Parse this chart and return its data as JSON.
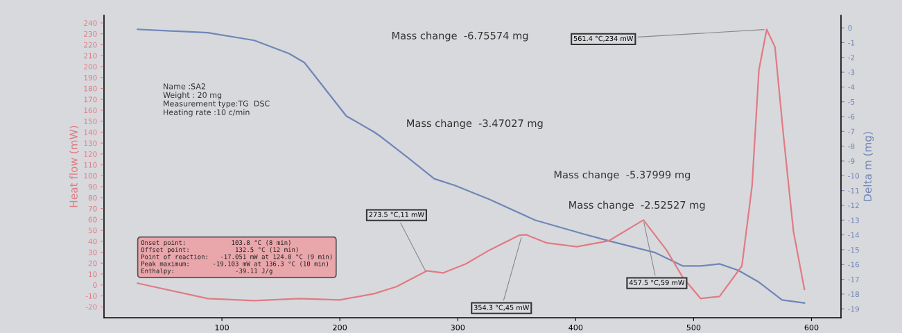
{
  "chart_data": {
    "type": "line",
    "ylabel": "Heat flow (mW)",
    "y2label": "Delta m (mg)",
    "xlim": [
      0,
      625
    ],
    "xticks": [
      100,
      200,
      300,
      400,
      500,
      600
    ],
    "ylim": [
      -30,
      247
    ],
    "yticks": [
      -20,
      -10,
      0,
      10,
      20,
      30,
      40,
      50,
      60,
      70,
      80,
      90,
      100,
      110,
      120,
      130,
      140,
      150,
      160,
      170,
      180,
      190,
      200,
      210,
      220,
      230,
      240
    ],
    "y2lim": [
      -19.6,
      0.85
    ],
    "y2ticks": [
      -19,
      -18,
      -17,
      -16,
      -15,
      -14,
      -13,
      -12,
      -11,
      -10,
      -9,
      -8,
      -7,
      -6,
      -5,
      -4,
      -3,
      -2,
      -1,
      0
    ],
    "grid": false,
    "legend": false,
    "series": [
      {
        "color": "#e07b84",
        "x": [
          28.5,
          88,
          127.5,
          166,
          200,
          229,
          248,
          274,
          287.5,
          307,
          327,
          352,
          358,
          375.5,
          401,
          428,
          457.5,
          477,
          491,
          506,
          522,
          541,
          549.6,
          555.4,
          562,
          569,
          576.5,
          584.7,
          594
        ],
        "values": [
          1.6,
          -12.4,
          -14.3,
          -12.4,
          -13.7,
          -8,
          -1.6,
          13,
          11,
          19.4,
          32,
          45.5,
          46,
          38.5,
          35,
          40.4,
          59.5,
          32,
          6.7,
          -12.4,
          -10.5,
          17.5,
          91,
          197,
          234,
          218,
          134,
          49,
          -4
        ]
      },
      {
        "color": "#6f86b8",
        "axis": "y2",
        "x": [
          28.5,
          88,
          127.5,
          157,
          170,
          205.5,
          229,
          235,
          258,
          280,
          297.5,
          327,
          365.5,
          405,
          428,
          467.5,
          491,
          506,
          522,
          538,
          555.5,
          575,
          594
        ],
        "values": [
          -0.1,
          -0.33,
          -0.85,
          -1.74,
          -2.35,
          -5.96,
          -7.04,
          -7.37,
          -8.8,
          -10.2,
          -10.65,
          -11.6,
          -13.0,
          -13.9,
          -14.4,
          -15.2,
          -16.1,
          -16.1,
          -15.96,
          -16.4,
          -17.2,
          -18.4,
          -18.6
        ]
      }
    ],
    "annotations": [
      "Mass change  -6.75574 mg",
      "Mass change  -3.47027 mg",
      "Mass change  -5.37999 mg",
      "Mass change  -2.52527 mg",
      "Name :SA2\nWeight : 20 mg\nMeasurement type:TG  DSC\nHeating rate :10 c/min",
      "Onset point:            103.8 °C (8 min)\nOffset point:            132.5 °C (12 min)\nPoint of reaction:   -17.051 mW at 124.0 °C (9 min)\nPeak maximum:      -19.103 mW at 136.3 °C (10 min)\nEnthalpy:                -39.11 J/g",
      {
        "text": "273.5 °C,11 mW",
        "x": 273.5,
        "y": 11
      },
      {
        "text": "354.3 °C,45 mW",
        "x": 354.3,
        "y": 45
      },
      {
        "text": "457.5 °C,59 mW",
        "x": 457.5,
        "y": 59
      },
      {
        "text": "561.4 °C,234 mW",
        "x": 561.4,
        "y": 234
      }
    ]
  }
}
